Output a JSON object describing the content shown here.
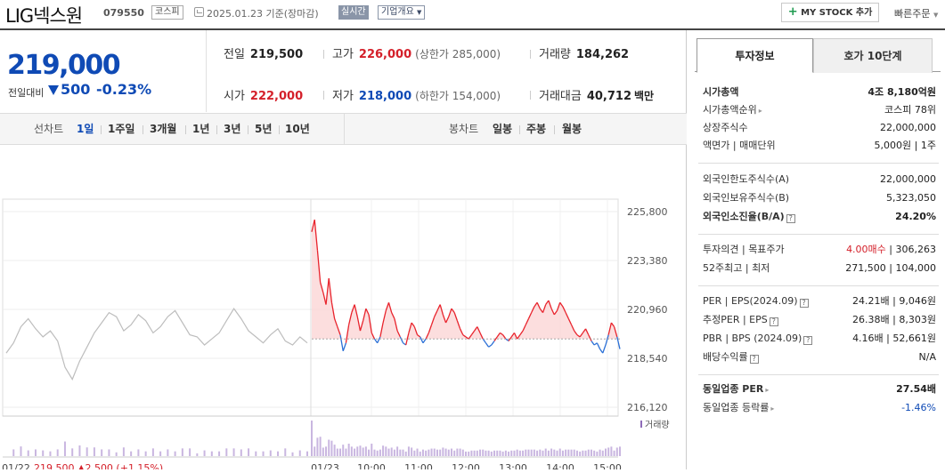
{
  "header": {
    "name": "LIG넥스원",
    "code": "079550",
    "market": "코스피",
    "basis": "2025.01.23  기준(장마감)",
    "realtime": "실시간",
    "company_overview": "기업개요",
    "mystock_label": "MY STOCK 추가",
    "quick_order": "빠른주문"
  },
  "price": {
    "current": "219,000",
    "change_label": "전일대비",
    "change": "500",
    "change_pct": "-0.23%"
  },
  "stats": {
    "prev_label": "전일",
    "prev": "219,500",
    "high_label": "고가",
    "high": "226,000",
    "upper_limit": "(상한가 285,000)",
    "volume_label": "거래량",
    "volume": "184,262",
    "open_label": "시가",
    "open": "222,000",
    "low_label": "저가",
    "low": "218,000",
    "lower_limit": "(하한가 154,000)",
    "amount_label": "거래대금",
    "amount": "40,712",
    "amount_unit": "백만"
  },
  "chart_tabs": {
    "line_label": "선차트",
    "ranges": [
      "1일",
      "1주일",
      "3개월",
      "1년",
      "3년",
      "5년",
      "10년"
    ],
    "active": "1일",
    "candle_label": "봉차트",
    "candles": [
      "일봉",
      "주봉",
      "월봉"
    ]
  },
  "chart_data": {
    "type": "line",
    "y_ticks": [
      "225,800",
      "223,380",
      "220,960",
      "218,540",
      "216,120"
    ],
    "ylim": [
      216120,
      225800
    ],
    "baseline": 219500,
    "x_labels": [
      "01/22",
      "01/23",
      "10:00",
      "11:00",
      "12:00",
      "13:00",
      "14:00",
      "15:00"
    ],
    "volume_label": "거래량",
    "prev_day_summary": {
      "date": "01/22",
      "close": "219,500",
      "change": "2,500",
      "change_pct": "(+1.15%)"
    },
    "colors": {
      "prev_day": "#bdbdbd",
      "up": "#e8232c",
      "down": "#2a6fd6",
      "fill_up": "#fbd6d6",
      "volume": "#c9b6e0"
    },
    "prev_day_series": [
      218800,
      219300,
      220100,
      220500,
      220000,
      219600,
      219900,
      219400,
      218100,
      217500,
      218400,
      219100,
      219800,
      220300,
      220800,
      220600,
      219900,
      220200,
      220700,
      220400,
      219800,
      220100,
      220600,
      220900,
      220300,
      219700,
      219600,
      219200,
      219500,
      219800,
      220400,
      221000,
      220500,
      219900,
      219600,
      219300,
      219700,
      220000,
      219400,
      219200,
      219600,
      219300
    ],
    "today_series": [
      224800,
      225400,
      223900,
      222300,
      221800,
      221200,
      222500,
      221300,
      220500,
      220100,
      219700,
      218900,
      219300,
      220200,
      220800,
      221200,
      220600,
      219900,
      220400,
      221000,
      220700,
      219800,
      219500,
      219300,
      219600,
      220300,
      220900,
      221300,
      220800,
      220500,
      219900,
      219600,
      219300,
      219200,
      219800,
      220300,
      220100,
      219700,
      219600,
      219300,
      219500,
      219800,
      220200,
      220600,
      220900,
      221200,
      220700,
      220300,
      220600,
      221000,
      220800,
      220400,
      220000,
      219700,
      219600,
      219500,
      219700,
      219900,
      220100,
      219800,
      219500,
      219300,
      219100,
      219200,
      219400,
      219600,
      219800,
      219700,
      219500,
      219400,
      219600,
      219800,
      219500,
      219700,
      219900,
      220200,
      220500,
      220800,
      221100,
      221300,
      221000,
      220800,
      221200,
      221400,
      221000,
      220700,
      220900,
      221300,
      221100,
      220800,
      220500,
      220200,
      219900,
      219700,
      219600,
      219800,
      220000,
      219700,
      219400,
      219200,
      219300,
      219000,
      218800,
      219200,
      219700,
      220300,
      220100,
      219600,
      219000
    ]
  },
  "right_tabs": [
    "투자정보",
    "호가 10단계"
  ],
  "invest": {
    "market_cap_label": "시가총액",
    "market_cap": "4조 8,180억원",
    "market_cap_rank_label": "시가총액순위",
    "market_cap_rank": "코스피 78위",
    "listed_shares_label": "상장주식수",
    "listed_shares": "22,000,000",
    "par_label": "액면가",
    "unit_label": "매매단위",
    "par": "5,000원",
    "unit": "1주",
    "foreign_limit_label": "외국인한도주식수(A)",
    "foreign_limit": "22,000,000",
    "foreign_hold_label": "외국인보유주식수(B)",
    "foreign_hold": "5,323,050",
    "foreign_rate_label": "외국인소진율(B/A)",
    "foreign_rate": "24.20%",
    "opinion_label": "투자의견",
    "target_label": "목표주가",
    "opinion": "4.00매수",
    "target": "306,263",
    "w52_high_label": "52주최고",
    "w52_low_label": "최저",
    "w52_high": "271,500",
    "w52_low": "104,000",
    "per_label": "PER",
    "eps_label": "EPS(2024.09)",
    "per": "24.21배",
    "eps": "9,046원",
    "est_per_label": "추정PER",
    "est_eps_label": "EPS",
    "est_per": "26.38배",
    "est_eps": "8,303원",
    "pbr_label": "PBR",
    "bps_label": "BPS (2024.09)",
    "pbr": "4.16배",
    "bps": "52,661원",
    "div_label": "배당수익률",
    "div": "N/A",
    "ind_per_label": "동일업종 PER",
    "ind_per": "27.54배",
    "ind_rate_label": "동일업종 등락률",
    "ind_rate": "-1.46%"
  }
}
